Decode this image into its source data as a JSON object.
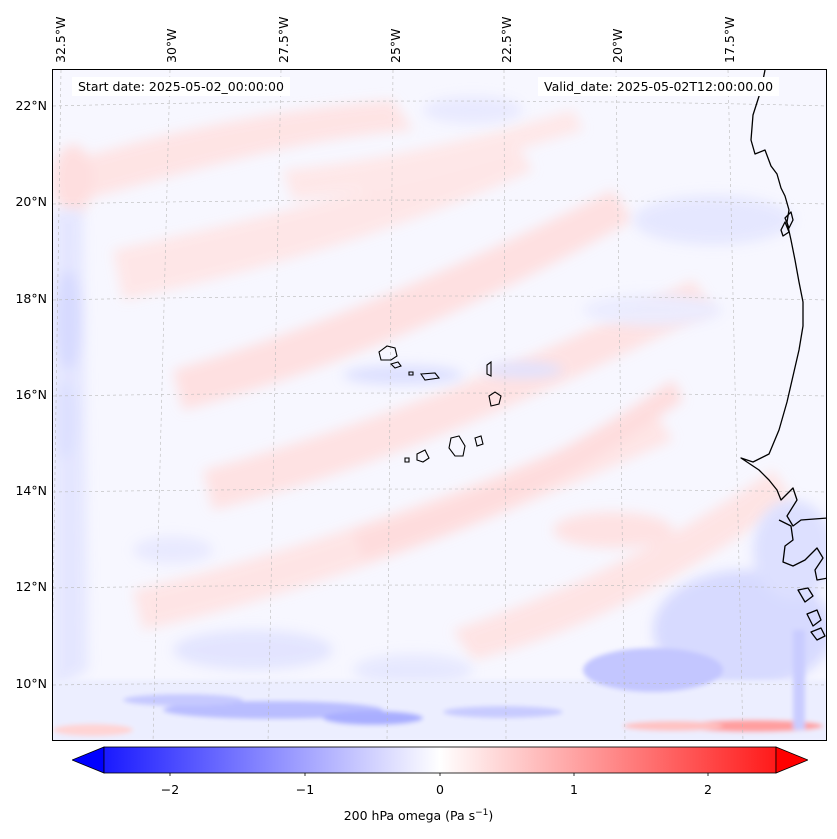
{
  "map": {
    "start_date": "Start date: 2025-05-02_00:00:00",
    "valid_date": "Valid_date: 2025-05-02T12:00:00.00",
    "lon_labels": [
      "32.5°W",
      "30°W",
      "27.5°W",
      "25°W",
      "22.5°W",
      "20°W",
      "17.5°W"
    ],
    "lat_labels": [
      "22°N",
      "20°N",
      "18°N",
      "16°N",
      "14°N",
      "12°N",
      "10°N"
    ],
    "extent": {
      "lon_min": -32.7,
      "lon_max": -15.6,
      "lat_min": 8.9,
      "lat_max": 22.8
    },
    "colors": {
      "coast": "#000000",
      "grid": "#b0b0b0",
      "neg": "#0000ff",
      "pos": "#ff0000",
      "zero": "#ffffff"
    }
  },
  "colorbar": {
    "ticks": [
      "−2",
      "−1",
      "0",
      "1",
      "2"
    ],
    "tick_values": [
      -2,
      -1,
      0,
      1,
      2
    ],
    "range": [
      -2.5,
      2.5
    ],
    "label_main": "200 hPa omega (Pa s",
    "label_sup": "−1",
    "label_end": ")"
  }
}
